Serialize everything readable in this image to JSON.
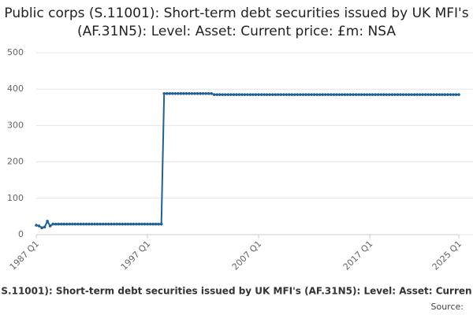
{
  "chart_data": {
    "type": "line",
    "title": "Public corps (S.11001): Short-term debt securities issued by UK MFI's (AF.31N5): Level: Asset: Current price: £m: NSA",
    "caption": "S.11001): Short-term debt securities issued by UK MFI's (AF.31N5): Level: Asset: Curren",
    "source": "Source:",
    "categories": [
      "1987 Q1",
      null,
      null,
      null,
      null,
      null,
      null,
      null,
      null,
      null,
      null,
      null,
      null,
      null,
      null,
      null,
      null,
      null,
      null,
      null,
      null,
      null,
      null,
      null,
      null,
      null,
      null,
      null,
      null,
      null,
      null,
      null,
      null,
      null,
      null,
      null,
      null,
      null,
      null,
      null,
      "1997 Q1",
      null,
      null,
      null,
      null,
      null,
      null,
      null,
      null,
      null,
      null,
      null,
      null,
      null,
      null,
      null,
      null,
      null,
      null,
      null,
      null,
      null,
      null,
      null,
      null,
      null,
      null,
      null,
      null,
      null,
      null,
      null,
      null,
      null,
      null,
      null,
      null,
      null,
      null,
      null,
      "2007 Q1",
      null,
      null,
      null,
      null,
      null,
      null,
      null,
      null,
      null,
      null,
      null,
      null,
      null,
      null,
      null,
      null,
      null,
      null,
      null,
      null,
      null,
      null,
      null,
      null,
      null,
      null,
      null,
      null,
      null,
      null,
      null,
      null,
      null,
      null,
      null,
      null,
      null,
      null,
      null,
      "2017 Q1",
      null,
      null,
      null,
      null,
      null,
      null,
      null,
      null,
      null,
      null,
      null,
      null,
      null,
      null,
      null,
      null,
      null,
      null,
      null,
      null,
      null,
      null,
      null,
      null,
      null,
      null,
      null,
      null,
      null,
      null,
      null,
      "2025 Q1"
    ],
    "series": [
      {
        "color": "#206095",
        "values": [
          26,
          24,
          19,
          21,
          37,
          24,
          29,
          29,
          29,
          29,
          29,
          29,
          29,
          29,
          29,
          29,
          29,
          29,
          29,
          29,
          29,
          29,
          29,
          29,
          29,
          29,
          29,
          29,
          29,
          29,
          29,
          29,
          29,
          29,
          29,
          29,
          29,
          29,
          29,
          29,
          29,
          29,
          29,
          29,
          29,
          29,
          388,
          388,
          388,
          388,
          388,
          388,
          388,
          388,
          388,
          388,
          388,
          388,
          388,
          388,
          388,
          388,
          388,
          388,
          385,
          385,
          385,
          385,
          385,
          385,
          385,
          385,
          385,
          385,
          385,
          385,
          385,
          385,
          385,
          385,
          385,
          385,
          385,
          385,
          385,
          385,
          385,
          385,
          385,
          385,
          385,
          385,
          385,
          385,
          385,
          385,
          385,
          385,
          385,
          385,
          385,
          385,
          385,
          385,
          385,
          385,
          385,
          385,
          385,
          385,
          385,
          385,
          385,
          385,
          385,
          385,
          385,
          385,
          385,
          385,
          385,
          385,
          385,
          385,
          385,
          385,
          385,
          385,
          385,
          385,
          385,
          385,
          385,
          385,
          385,
          385,
          385,
          385,
          385,
          385,
          385,
          385,
          385,
          385,
          385,
          385,
          385,
          385,
          385,
          385,
          385,
          385,
          385
        ]
      }
    ],
    "ylim": [
      0,
      500
    ],
    "yticks": [
      0,
      100,
      200,
      300,
      400,
      500
    ],
    "grid": true
  }
}
